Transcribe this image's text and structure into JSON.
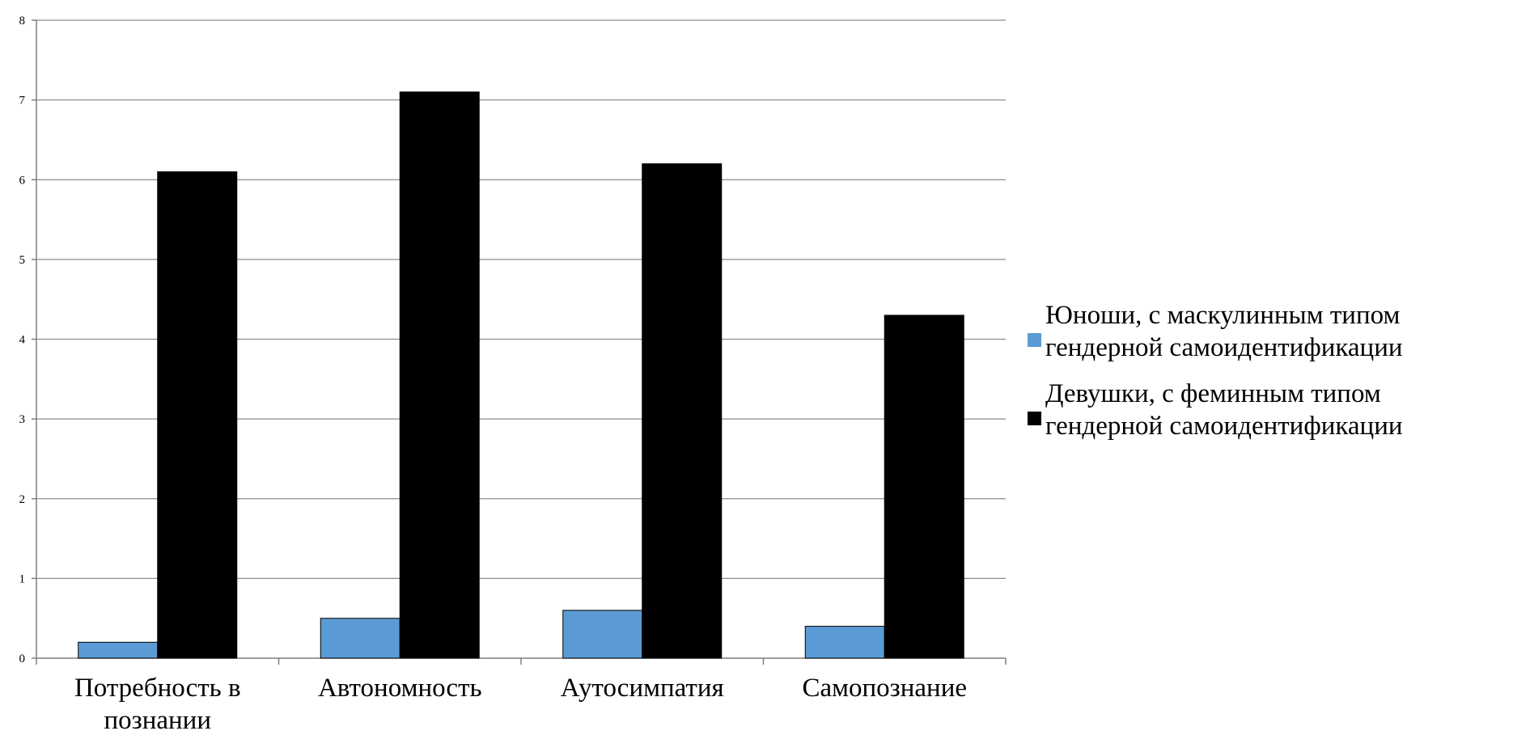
{
  "chart_data": {
    "type": "bar",
    "title": "",
    "xlabel": "",
    "ylabel": "",
    "ylim": [
      0,
      8
    ],
    "yticks": [
      "0",
      "1",
      "2",
      "3",
      "4",
      "5",
      "6",
      "7",
      "8"
    ],
    "grid": true,
    "legend_position": "right",
    "categories": [
      [
        "Потребность в",
        "познании"
      ],
      [
        "Автономность"
      ],
      [
        "Аутосимпатия"
      ],
      [
        "Самопознание"
      ]
    ],
    "series": [
      {
        "name": [
          "Юноши, с маскулинным типом",
          "гендерной самоидентификации"
        ],
        "color": "#5b9bd5",
        "values": [
          0.2,
          0.5,
          0.6,
          0.4
        ]
      },
      {
        "name": [
          "Девушки, с феминным типом",
          "гендерной самоидентификации"
        ],
        "color": "#000000",
        "values": [
          6.1,
          7.1,
          6.2,
          4.3
        ]
      }
    ]
  }
}
